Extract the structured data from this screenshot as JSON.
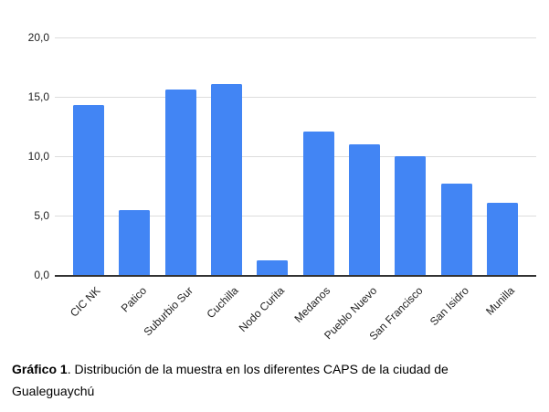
{
  "chart_data": {
    "type": "bar",
    "title": "",
    "categories": [
      "CIC NK",
      "Patico",
      "Suburbio Sur",
      "Cuchilla",
      "Nodo Curita",
      "Medanos",
      "Pueblo Nuevo",
      "San Francisco",
      "San Isidro",
      "Munilla"
    ],
    "values": [
      14.3,
      5.5,
      15.6,
      16.1,
      1.2,
      12.1,
      11.0,
      10.0,
      7.7,
      6.1
    ],
    "xlabel": "",
    "ylabel": "",
    "ylim": [
      0,
      20
    ],
    "ytick_step": 5,
    "ytick_labels": [
      "0,0",
      "5,0",
      "10,0",
      "15,0",
      "20,0"
    ],
    "grid": true,
    "legend_position": "none",
    "bar_color": "#4285F4",
    "gridline_color": "#dddddd",
    "axis_color": "#333333"
  },
  "caption": {
    "label": "Gráfico 1",
    "text": ". Distribución de la muestra en los diferentes CAPS de la ciudad de Gualeguaychú"
  }
}
